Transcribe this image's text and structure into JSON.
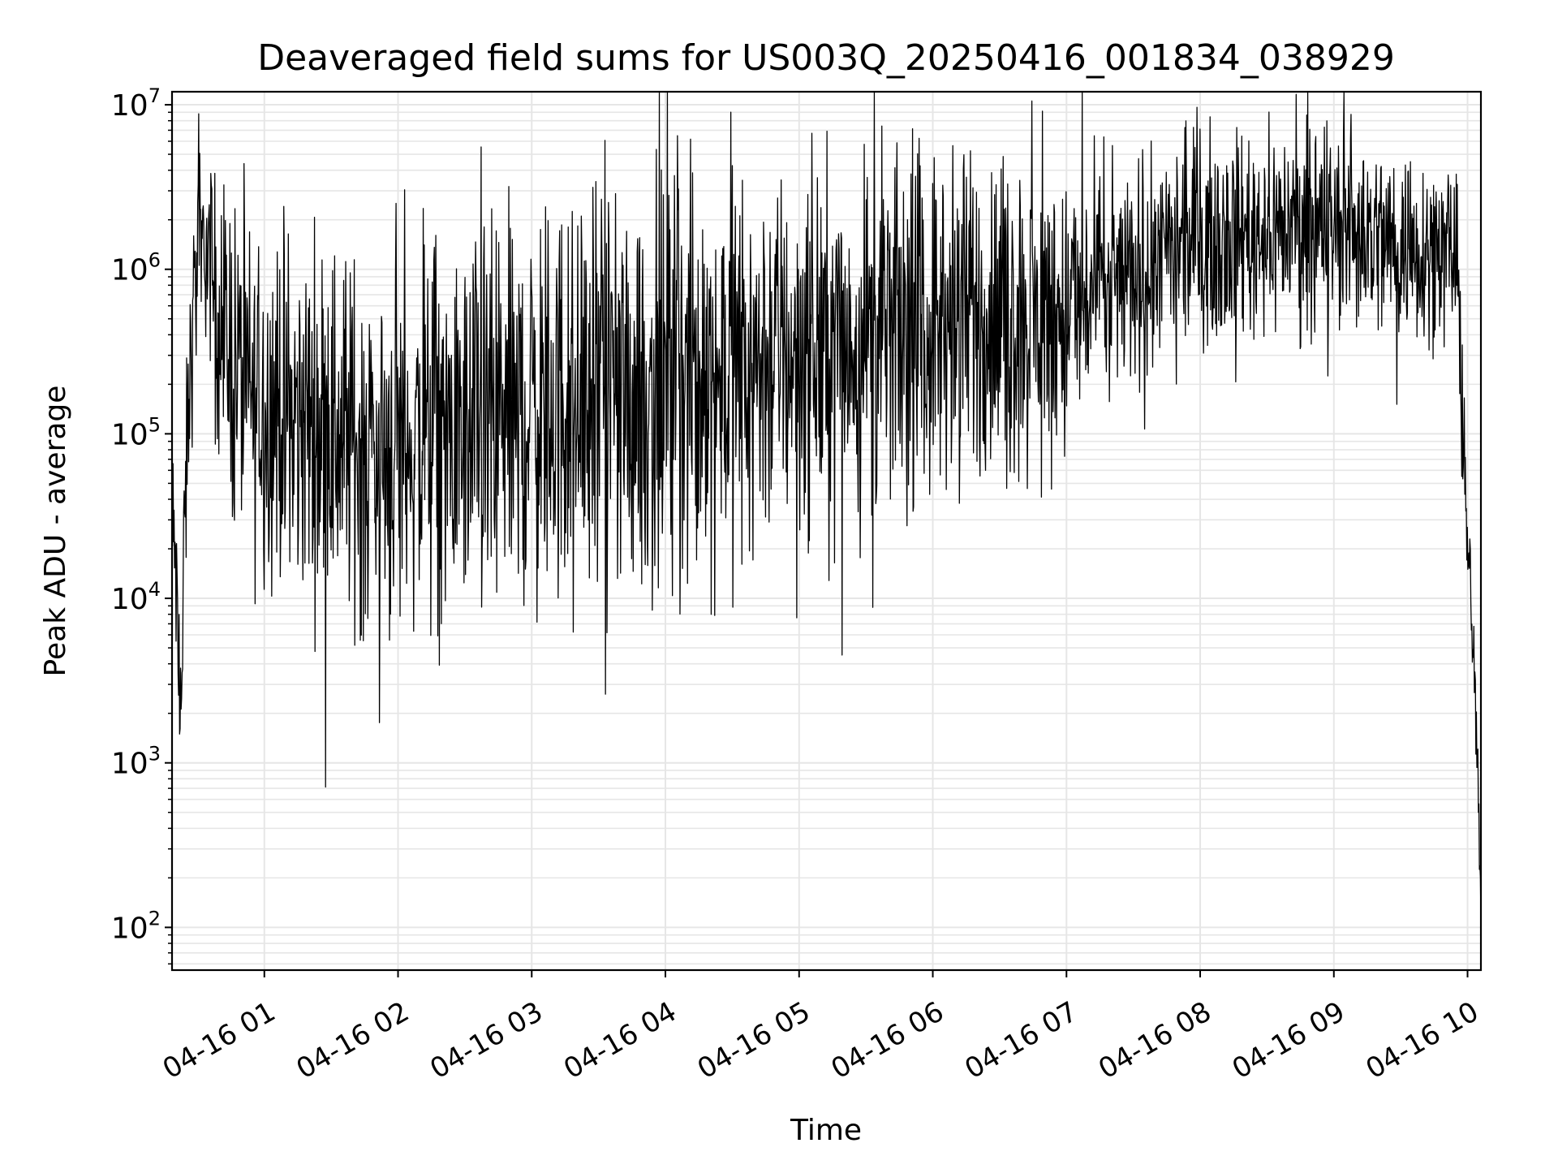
{
  "chart_data": {
    "type": "line",
    "title": "Deaveraged field sums for US003Q_20250416_001834_038929",
    "xlabel": "Time",
    "ylabel": "Peak ADU - average",
    "yscale": "log",
    "ylim": [
      55,
      12000000
    ],
    "xlim": [
      "2025-04-16T00:18:34",
      "2025-04-16T10:06:00"
    ],
    "grid": true,
    "line_color": "#000000",
    "grid_color": "#e6e6e6",
    "yticks": [
      {
        "value": 100,
        "base": "10",
        "exp": "2"
      },
      {
        "value": 1000,
        "base": "10",
        "exp": "3"
      },
      {
        "value": 10000,
        "base": "10",
        "exp": "4"
      },
      {
        "value": 100000,
        "base": "10",
        "exp": "5"
      },
      {
        "value": 1000000,
        "base": "10",
        "exp": "6"
      },
      {
        "value": 10000000,
        "base": "10",
        "exp": "7"
      }
    ],
    "xticks": [
      {
        "time": "2025-04-16T01:00:00",
        "label": "04-16 01"
      },
      {
        "time": "2025-04-16T02:00:00",
        "label": "04-16 02"
      },
      {
        "time": "2025-04-16T03:00:00",
        "label": "04-16 03"
      },
      {
        "time": "2025-04-16T04:00:00",
        "label": "04-16 04"
      },
      {
        "time": "2025-04-16T05:00:00",
        "label": "04-16 05"
      },
      {
        "time": "2025-04-16T06:00:00",
        "label": "04-16 06"
      },
      {
        "time": "2025-04-16T07:00:00",
        "label": "04-16 07"
      },
      {
        "time": "2025-04-16T08:00:00",
        "label": "04-16 08"
      },
      {
        "time": "2025-04-16T09:00:00",
        "label": "04-16 09"
      },
      {
        "time": "2025-04-16T10:00:00",
        "label": "04-16 10"
      }
    ],
    "series": [
      {
        "style": "noisy",
        "envelope": [
          {
            "t": "2025-04-16T00:18:34",
            "median": 20000,
            "spread": 0.35
          },
          {
            "t": "2025-04-16T00:20:00",
            "median": 20000,
            "spread": 0.3
          },
          {
            "t": "2025-04-16T00:21:30",
            "median": 3000,
            "spread": 0.2
          },
          {
            "t": "2025-04-16T00:23:00",
            "median": 2500,
            "spread": 0.2
          },
          {
            "t": "2025-04-16T00:24:00",
            "median": 20000,
            "spread": 0.3
          },
          {
            "t": "2025-04-16T00:26:00",
            "median": 150000,
            "spread": 0.3
          },
          {
            "t": "2025-04-16T00:29:00",
            "median": 900000,
            "spread": 0.3
          },
          {
            "t": "2025-04-16T00:33:00",
            "median": 1500000,
            "spread": 0.25
          },
          {
            "t": "2025-04-16T00:38:00",
            "median": 700000,
            "spread": 0.35
          },
          {
            "t": "2025-04-16T00:45:00",
            "median": 300000,
            "spread": 0.5
          },
          {
            "t": "2025-04-16T00:55:00",
            "median": 150000,
            "spread": 0.5
          },
          {
            "t": "2025-04-16T01:30:00",
            "median": 110000,
            "spread": 0.55
          },
          {
            "t": "2025-04-16T01:50:00",
            "median": 80000,
            "spread": 0.55
          },
          {
            "t": "2025-04-16T02:30:00",
            "median": 100000,
            "spread": 0.55
          },
          {
            "t": "2025-04-16T03:00:00",
            "median": 140000,
            "spread": 0.6
          },
          {
            "t": "2025-04-16T04:00:00",
            "median": 190000,
            "spread": 0.6
          },
          {
            "t": "2025-04-16T05:00:00",
            "median": 330000,
            "spread": 0.55
          },
          {
            "t": "2025-04-16T06:00:00",
            "median": 470000,
            "spread": 0.5
          },
          {
            "t": "2025-04-16T07:00:00",
            "median": 520000,
            "spread": 0.45
          },
          {
            "t": "2025-04-16T07:10:00",
            "median": 650000,
            "spread": 0.35
          },
          {
            "t": "2025-04-16T07:40:00",
            "median": 1100000,
            "spread": 0.3
          },
          {
            "t": "2025-04-16T08:00:00",
            "median": 1500000,
            "spread": 0.3
          },
          {
            "t": "2025-04-16T08:30:00",
            "median": 1800000,
            "spread": 0.3
          },
          {
            "t": "2025-04-16T09:00:00",
            "median": 1800000,
            "spread": 0.3
          },
          {
            "t": "2025-04-16T09:30:00",
            "median": 1400000,
            "spread": 0.3
          },
          {
            "t": "2025-04-16T09:55:00",
            "median": 1300000,
            "spread": 0.25
          },
          {
            "t": "2025-04-16T09:57:30",
            "median": 150000,
            "spread": 0.2
          },
          {
            "t": "2025-04-16T10:00:00",
            "median": 20000,
            "spread": 0.2
          },
          {
            "t": "2025-04-16T10:03:00",
            "median": 4000,
            "spread": 0.15
          },
          {
            "t": "2025-04-16T10:06:00",
            "median": 140,
            "spread": 0.1
          }
        ]
      }
    ]
  }
}
